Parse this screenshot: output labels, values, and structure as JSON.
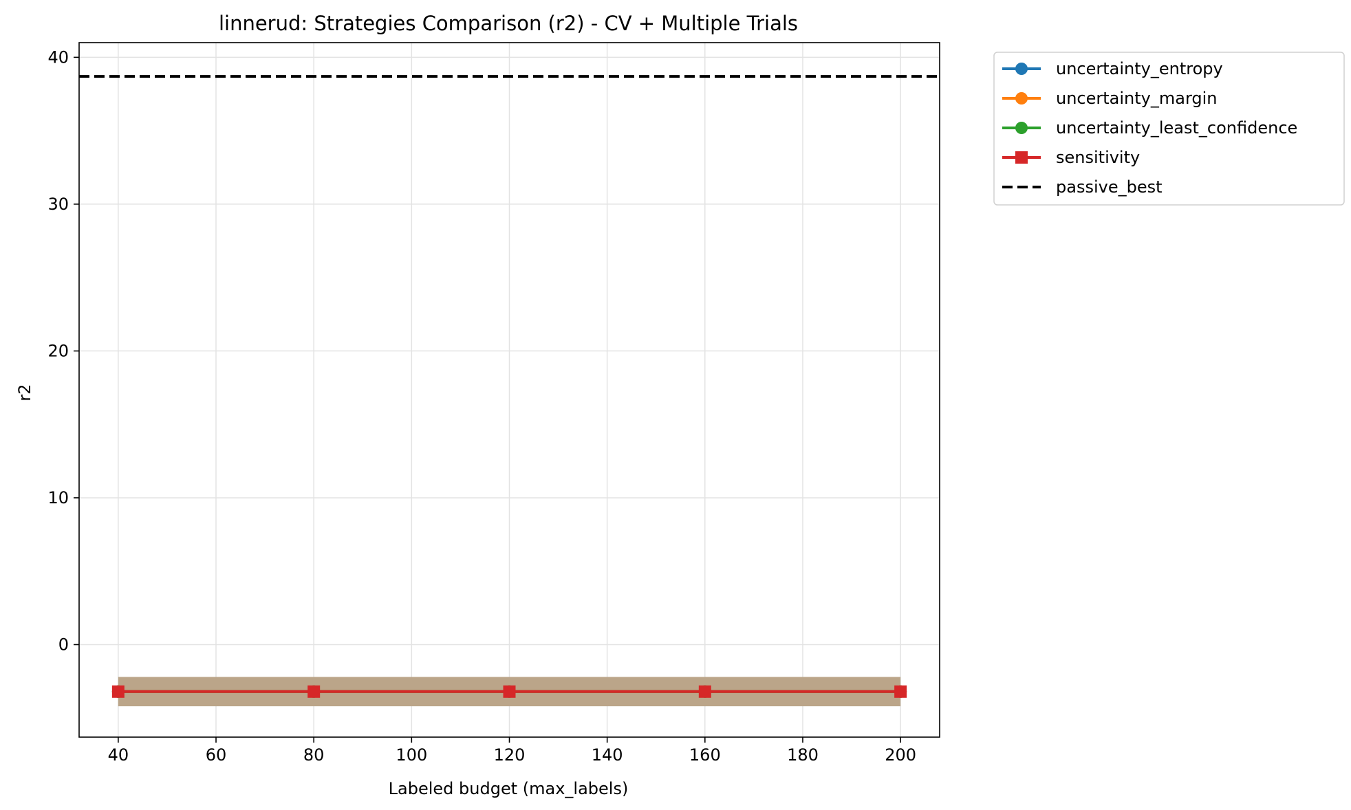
{
  "chart_data": {
    "type": "line",
    "title": "linnerud: Strategies Comparison (r2) - CV + Multiple Trials",
    "xlabel": "Labeled budget (max_labels)",
    "ylabel": "r2",
    "xlim": [
      32,
      208
    ],
    "ylim": [
      -6.3,
      41
    ],
    "x_ticks": [
      40,
      60,
      80,
      100,
      120,
      140,
      160,
      180,
      200
    ],
    "y_ticks": [
      0,
      10,
      20,
      30,
      40
    ],
    "grid": true,
    "legend_position": "outside upper right",
    "x": [
      40,
      80,
      120,
      160,
      200
    ],
    "series": [
      {
        "name": "uncertainty_entropy",
        "color": "#1f77b4",
        "marker": "circle",
        "style": "solid",
        "values": [
          -3.2,
          -3.2,
          -3.2,
          -3.2,
          -3.2
        ],
        "band": [
          [
            -4.2,
            -2.2
          ],
          [
            -4.2,
            -2.2
          ],
          [
            -4.2,
            -2.2
          ],
          [
            -4.2,
            -2.2
          ],
          [
            -4.2,
            -2.2
          ]
        ]
      },
      {
        "name": "uncertainty_margin",
        "color": "#ff7f0e",
        "marker": "circle",
        "style": "solid",
        "values": [
          -3.2,
          -3.2,
          -3.2,
          -3.2,
          -3.2
        ],
        "band": [
          [
            -4.2,
            -2.2
          ],
          [
            -4.2,
            -2.2
          ],
          [
            -4.2,
            -2.2
          ],
          [
            -4.2,
            -2.2
          ],
          [
            -4.2,
            -2.2
          ]
        ]
      },
      {
        "name": "uncertainty_least_confidence",
        "color": "#2ca02c",
        "marker": "circle",
        "style": "solid",
        "values": [
          -3.2,
          -3.2,
          -3.2,
          -3.2,
          -3.2
        ],
        "band": [
          [
            -4.2,
            -2.2
          ],
          [
            -4.2,
            -2.2
          ],
          [
            -4.2,
            -2.2
          ],
          [
            -4.2,
            -2.2
          ],
          [
            -4.2,
            -2.2
          ]
        ]
      },
      {
        "name": "sensitivity",
        "color": "#d62728",
        "marker": "square",
        "style": "solid",
        "values": [
          -3.2,
          -3.2,
          -3.2,
          -3.2,
          -3.2
        ],
        "band": [
          [
            -4.2,
            -2.2
          ],
          [
            -4.2,
            -2.2
          ],
          [
            -4.2,
            -2.2
          ],
          [
            -4.2,
            -2.2
          ],
          [
            -4.2,
            -2.2
          ]
        ]
      }
    ],
    "reference_lines": [
      {
        "name": "passive_best",
        "color": "#000000",
        "style": "dashed",
        "y": 38.7
      }
    ],
    "band_color": "#bba589"
  }
}
